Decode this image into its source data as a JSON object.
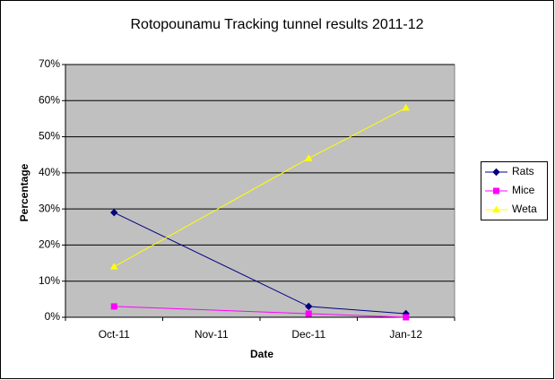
{
  "chart_data": {
    "type": "line",
    "title": "Rotopounamu Tracking tunnel results 2011-12",
    "x_label": "Date",
    "y_label": "Percentage",
    "categories": [
      "Oct-11",
      "Nov-11",
      "Dec-11",
      "Jan-12"
    ],
    "series": [
      {
        "name": "Rats",
        "color": "#000080",
        "marker": "diamond",
        "values": [
          29,
          null,
          3,
          1
        ]
      },
      {
        "name": "Mice",
        "color": "#ff00ff",
        "marker": "square",
        "values": [
          3,
          null,
          1,
          0
        ]
      },
      {
        "name": "Weta",
        "color": "#ffff00",
        "marker": "triangle",
        "values": [
          14,
          null,
          44,
          58
        ]
      }
    ],
    "connect_gaps": true,
    "ylim": [
      0,
      70
    ],
    "yticks": [
      {
        "value": 0,
        "label": "0%"
      },
      {
        "value": 10,
        "label": "10%"
      },
      {
        "value": 20,
        "label": "20%"
      },
      {
        "value": 30,
        "label": "30%"
      },
      {
        "value": 40,
        "label": "40%"
      },
      {
        "value": 50,
        "label": "50%"
      },
      {
        "value": 60,
        "label": "60%"
      },
      {
        "value": 70,
        "label": "70%"
      }
    ],
    "grid": true,
    "legend": "right"
  }
}
